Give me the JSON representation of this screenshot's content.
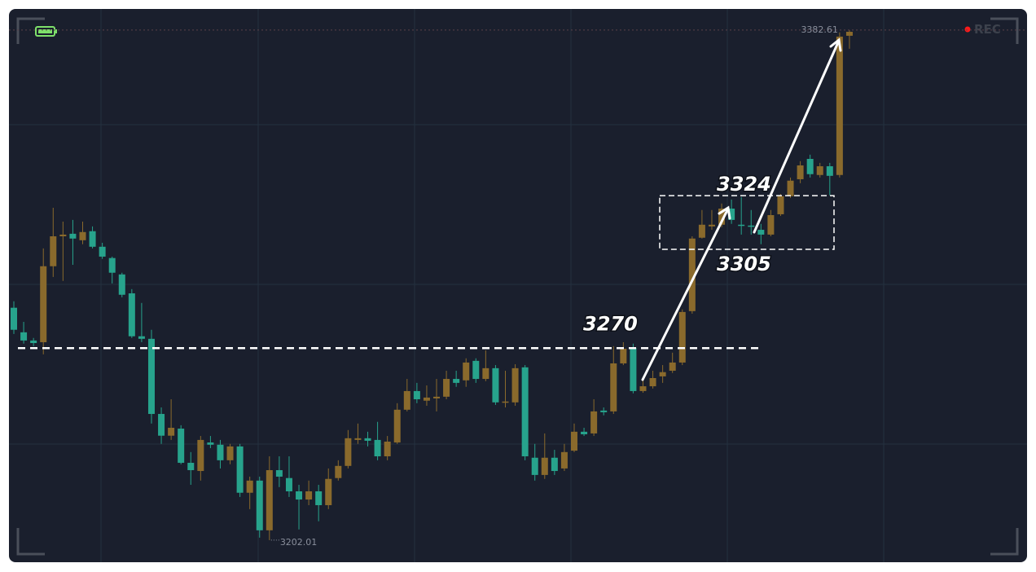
{
  "chart_data": {
    "type": "candlestick",
    "ylim": [
      3194.2,
      3389.8
    ],
    "up_color": "#8a6a2c",
    "down_color": "#27a38c",
    "badge": "REC",
    "support_line": 3270,
    "range_box": [
      3305,
      3324
    ],
    "open": [
      3284.3,
      3275.6,
      3272.7,
      3272.1,
      3299.0,
      3309.6,
      3310.5,
      3308.2,
      3311.4,
      3305.9,
      3301.9,
      3296.1,
      3289.4,
      3274.2,
      3273.3,
      3246.7,
      3239.0,
      3241.5,
      3229.4,
      3226.5,
      3236.6,
      3235.8,
      3230.3,
      3235.2,
      3218.8,
      3223.1,
      3205.5,
      3226.8,
      3224.0,
      3219.3,
      3216.4,
      3219.3,
      3214.4,
      3224.0,
      3228.3,
      3237.5,
      3238.1,
      3237.5,
      3231.7,
      3236.6,
      3248.2,
      3254.8,
      3251.4,
      3252.2,
      3252.8,
      3259.1,
      3258.6,
      3265.5,
      3259.1,
      3262.9,
      3250.8,
      3250.8,
      3263.2,
      3231.2,
      3225.1,
      3231.2,
      3227.4,
      3233.7,
      3240.4,
      3239.8,
      3247.9,
      3247.6,
      3264.6,
      3270.1,
      3254.8,
      3256.5,
      3260.0,
      3262.0,
      3264.9,
      3283.1,
      3309.1,
      3313.1,
      3313.7,
      3319.4,
      3313.7,
      3313.4,
      3311.9,
      3310.2,
      3317.4,
      3323.8,
      3329.8,
      3337.0,
      3331.3,
      3334.4,
      3331.3,
      3380.6
    ],
    "high": [
      3286.6,
      3279.3,
      3273.6,
      3305.3,
      3319.7,
      3314.8,
      3315.4,
      3314.8,
      3313.1,
      3307.3,
      3302.4,
      3296.7,
      3290.9,
      3286.0,
      3276.5,
      3249.0,
      3251.9,
      3242.7,
      3233.2,
      3238.9,
      3238.9,
      3237.5,
      3236.1,
      3236.1,
      3224.5,
      3224.5,
      3231.7,
      3231.7,
      3231.7,
      3221.6,
      3223.1,
      3221.6,
      3227.4,
      3230.3,
      3241.0,
      3243.3,
      3240.4,
      3243.9,
      3238.9,
      3250.5,
      3259.1,
      3257.7,
      3256.8,
      3259.1,
      3262.0,
      3262.0,
      3266.4,
      3266.4,
      3269.2,
      3264.0,
      3262.0,
      3264.3,
      3264.0,
      3236.1,
      3239.8,
      3234.0,
      3236.1,
      3243.3,
      3241.8,
      3251.9,
      3249.0,
      3270.7,
      3272.1,
      3271.6,
      3259.1,
      3262.0,
      3264.0,
      3268.4,
      3283.7,
      3309.6,
      3318.9,
      3318.9,
      3321.2,
      3322.6,
      3323.5,
      3318.9,
      3314.0,
      3318.9,
      3324.6,
      3330.4,
      3336.2,
      3338.5,
      3335.6,
      3335.6,
      3381.8,
      3382.61
    ],
    "low": [
      3275.0,
      3271.6,
      3270.7,
      3267.8,
      3295.2,
      3293.8,
      3299.5,
      3306.8,
      3305.3,
      3301.6,
      3292.9,
      3288.0,
      3273.6,
      3272.1,
      3243.3,
      3236.1,
      3237.5,
      3228.9,
      3221.6,
      3223.1,
      3234.6,
      3227.4,
      3228.9,
      3217.3,
      3213.0,
      3202.9,
      3202.01,
      3220.8,
      3217.3,
      3205.8,
      3214.4,
      3208.7,
      3213.0,
      3223.1,
      3227.4,
      3236.1,
      3235.2,
      3230.3,
      3230.3,
      3236.1,
      3247.6,
      3250.5,
      3249.6,
      3247.6,
      3251.9,
      3256.3,
      3256.3,
      3257.7,
      3258.3,
      3249.9,
      3249.0,
      3249.6,
      3230.3,
      3223.1,
      3223.7,
      3225.1,
      3226.5,
      3233.2,
      3238.9,
      3238.9,
      3246.2,
      3246.7,
      3264.0,
      3254.0,
      3254.2,
      3255.7,
      3257.7,
      3261.2,
      3264.0,
      3282.2,
      3308.8,
      3311.9,
      3312.8,
      3314.0,
      3310.2,
      3310.2,
      3306.8,
      3309.6,
      3316.8,
      3323.2,
      3328.4,
      3330.4,
      3330.4,
      3324.1,
      3330.4,
      3376.0
    ],
    "close": [
      3276.5,
      3272.7,
      3271.8,
      3299.0,
      3309.6,
      3310.2,
      3308.8,
      3311.1,
      3305.9,
      3302.4,
      3296.7,
      3288.9,
      3274.2,
      3273.3,
      3246.7,
      3239.0,
      3241.8,
      3229.4,
      3226.8,
      3237.5,
      3235.8,
      3230.3,
      3235.2,
      3218.8,
      3223.1,
      3205.5,
      3226.8,
      3224.5,
      3219.3,
      3216.4,
      3219.3,
      3214.4,
      3223.7,
      3228.3,
      3238.1,
      3238.1,
      3237.2,
      3231.7,
      3236.9,
      3248.2,
      3254.8,
      3251.9,
      3252.5,
      3252.8,
      3259.1,
      3257.7,
      3264.9,
      3259.1,
      3262.9,
      3250.8,
      3251.1,
      3262.9,
      3231.7,
      3225.1,
      3231.2,
      3226.5,
      3233.2,
      3240.4,
      3239.5,
      3247.6,
      3247.3,
      3264.6,
      3269.8,
      3254.8,
      3256.5,
      3259.4,
      3261.5,
      3264.9,
      3282.8,
      3308.8,
      3313.7,
      3313.7,
      3319.4,
      3315.4,
      3313.4,
      3313.1,
      3310.2,
      3317.1,
      3323.8,
      3329.3,
      3334.7,
      3331.6,
      3334.4,
      3331.0,
      3380.3,
      3382.0
    ]
  }
}
